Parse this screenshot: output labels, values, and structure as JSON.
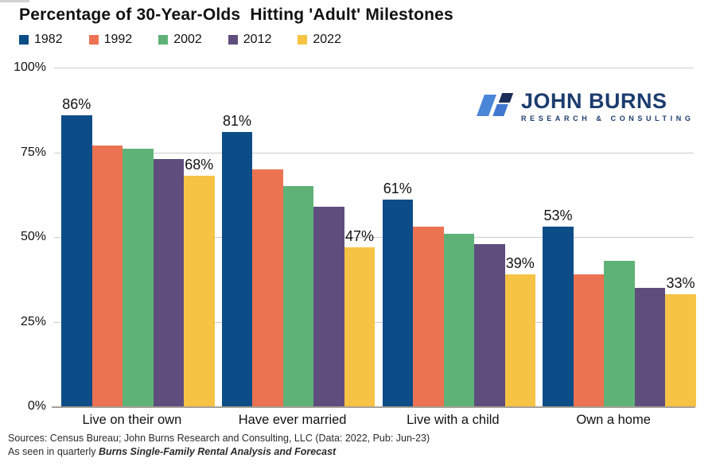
{
  "title": "Percentage of 30-Year-Olds  Hitting 'Adult' Milestones",
  "logo": {
    "name": "JOHN BURNS",
    "tagline": "RESEARCH & CONSULTING",
    "mark_colors": {
      "left_bar": "#4a86d8",
      "top_right_bar": "#1b2d58",
      "bottom_right_bar": "#4177cf"
    },
    "text_color": "#1c3c6e"
  },
  "footer": {
    "line1": "Sources: Census Bureau; John Burns Research and Consulting, LLC (Data: 2022, Pub: Jun-23)",
    "line2_prefix": "As seen in quarterly ",
    "line2_emphasis": "Burns Single-Family Rental Analysis and Forecast"
  },
  "chart_data": {
    "type": "bar",
    "title": "Percentage of 30-Year-Olds  Hitting 'Adult' Milestones",
    "categories": [
      "Live on their own",
      "Have ever married",
      "Live with a child",
      "Own a home"
    ],
    "series": [
      {
        "name": "1982",
        "color": "#0d4d87",
        "values": [
          86,
          81,
          61,
          53
        ]
      },
      {
        "name": "1992",
        "color": "#ec7351",
        "values": [
          77,
          70,
          53,
          39
        ]
      },
      {
        "name": "2002",
        "color": "#5fb277",
        "values": [
          76,
          65,
          51,
          43
        ]
      },
      {
        "name": "2012",
        "color": "#5f4d7e",
        "values": [
          73,
          59,
          48,
          35
        ]
      },
      {
        "name": "2022",
        "color": "#f6c344",
        "values": [
          68,
          47,
          39,
          33
        ]
      }
    ],
    "labeled_series": [
      "1982",
      "2022"
    ],
    "value_suffix": "%",
    "y_ticks": [
      {
        "label": "100%",
        "value": 100
      },
      {
        "label": "75%",
        "value": 75
      },
      {
        "label": "50%",
        "value": 50
      },
      {
        "label": "25%",
        "value": 25
      },
      {
        "label": "0%",
        "value": 0
      }
    ],
    "ylim": [
      0,
      100
    ],
    "grid": true,
    "legend_position": "top-left",
    "gridline_color": "#cccccc",
    "baseline_color": "#a6a098"
  }
}
